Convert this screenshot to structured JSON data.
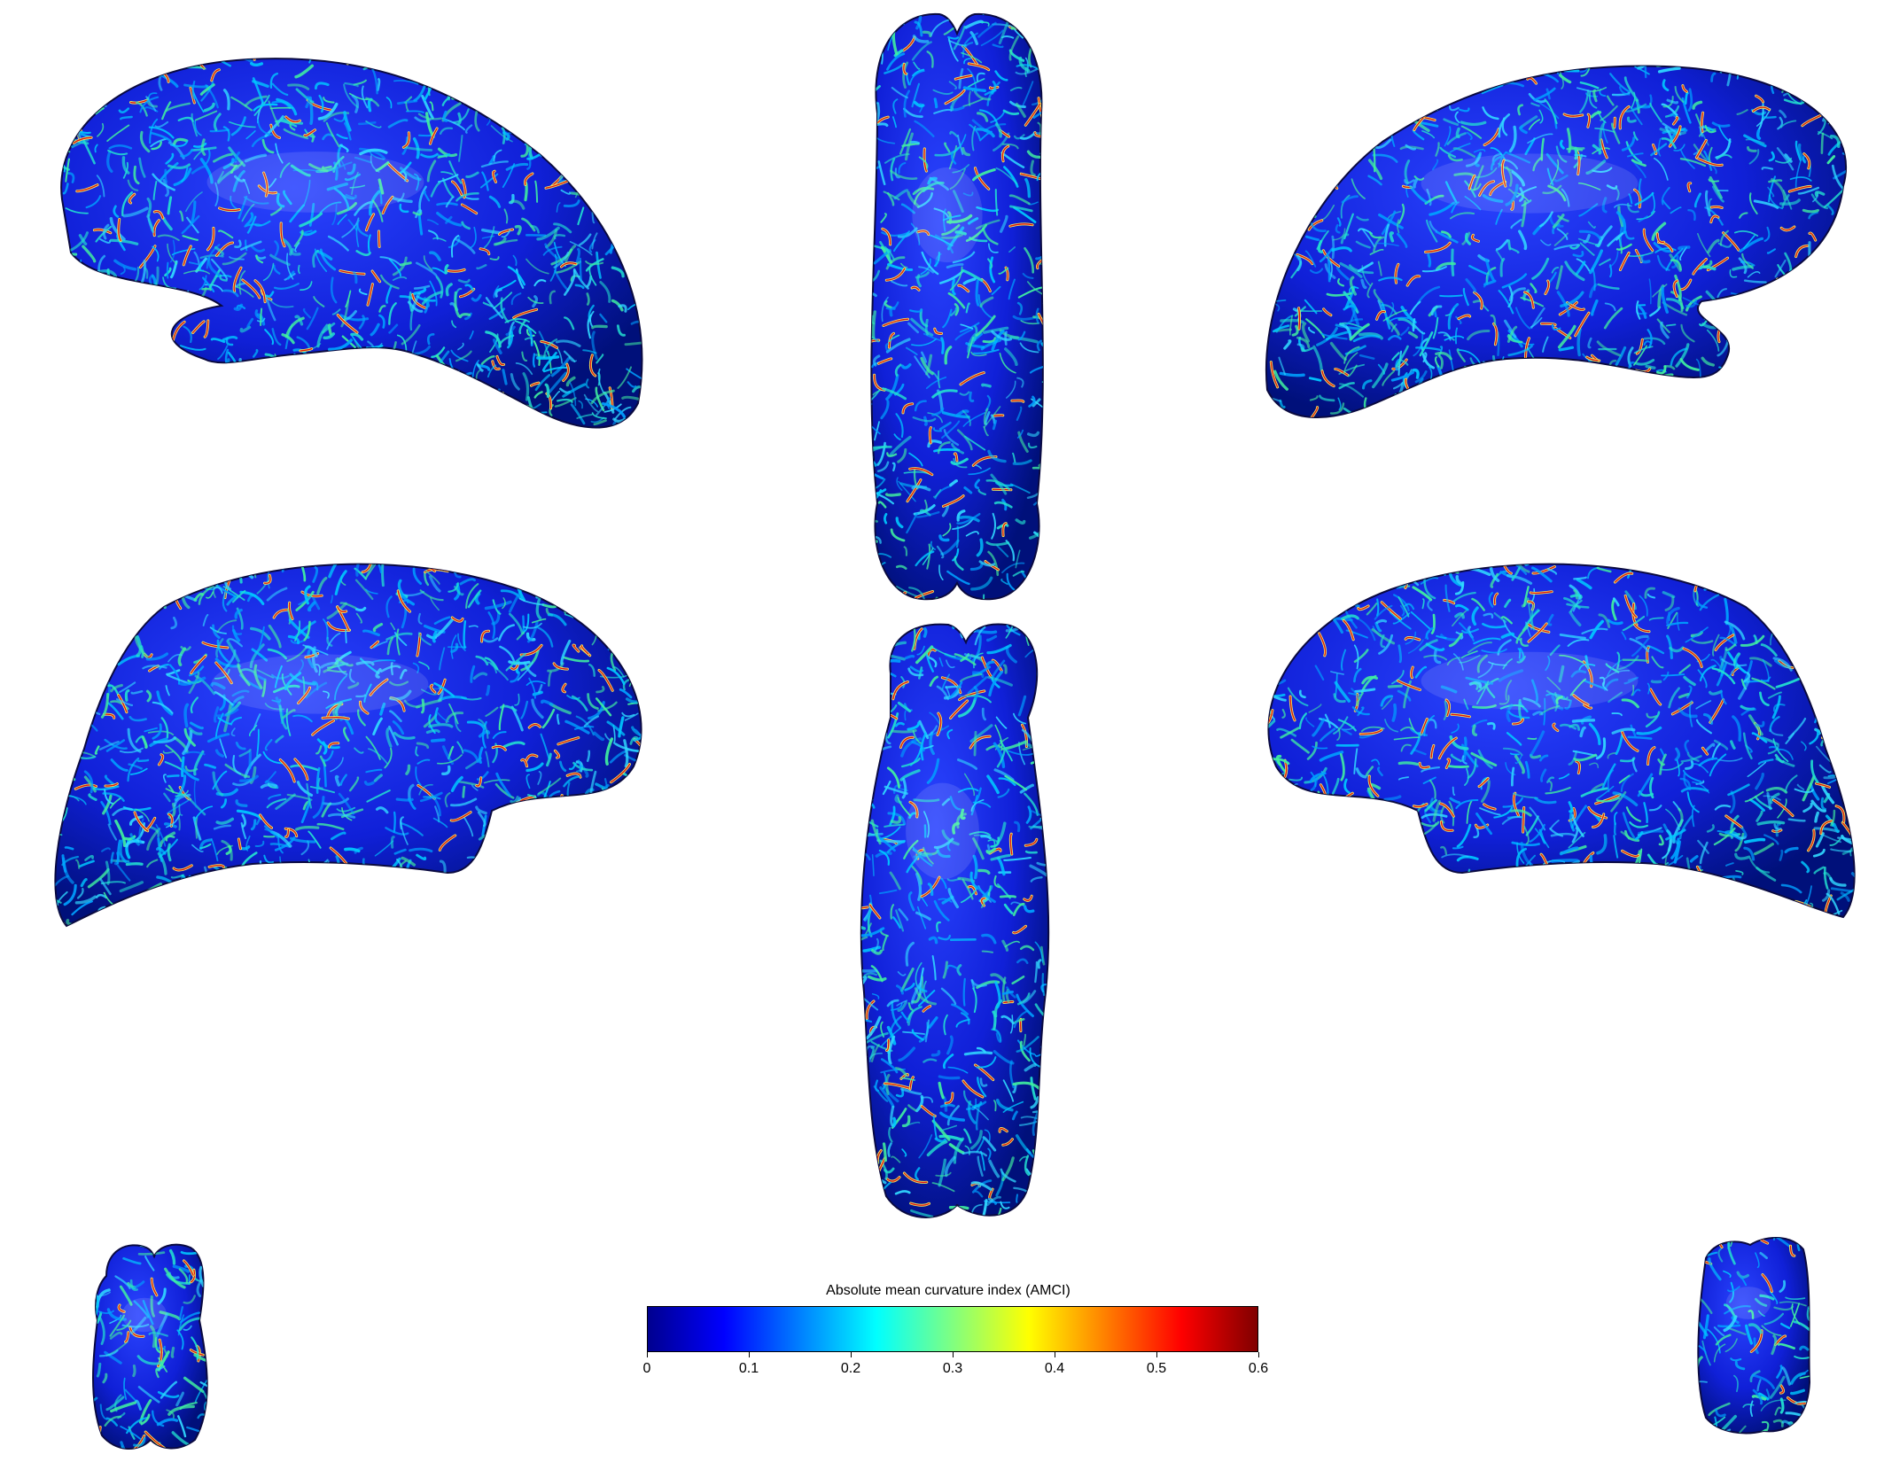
{
  "figure": {
    "views": [
      {
        "id": "left-lateral",
        "name": "left-lateral-hemisphere-view"
      },
      {
        "id": "top-dorsal",
        "name": "dorsal-view-top"
      },
      {
        "id": "right-lateral",
        "name": "right-lateral-hemisphere-view"
      },
      {
        "id": "left-medial",
        "name": "left-medial-hemisphere-view"
      },
      {
        "id": "bottom-ventral",
        "name": "ventral-view-bottom"
      },
      {
        "id": "right-medial",
        "name": "right-medial-hemisphere-view"
      },
      {
        "id": "front-small",
        "name": "anterior-view-small"
      },
      {
        "id": "back-small",
        "name": "posterior-view-small"
      }
    ]
  },
  "colorbar": {
    "title": "Absolute mean curvature index (AMCI)",
    "min": 0,
    "max": 0.6,
    "colormap": "jet",
    "ticks": [
      "0",
      "0.1",
      "0.2",
      "0.3",
      "0.4",
      "0.5",
      "0.6"
    ],
    "tick_values": [
      0,
      0.1,
      0.2,
      0.3,
      0.4,
      0.5,
      0.6
    ]
  },
  "colors": {
    "background": "#ffffff",
    "jet_stops": [
      "#00008f",
      "#0000ff",
      "#0080ff",
      "#00ffff",
      "#80ff80",
      "#ffff00",
      "#ff8000",
      "#ff0000",
      "#800000"
    ]
  }
}
